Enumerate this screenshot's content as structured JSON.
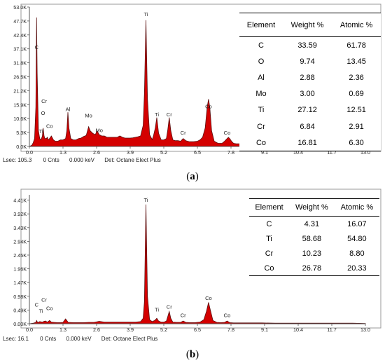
{
  "chart_data": [
    {
      "type": "line",
      "panel": "(a)",
      "x_ticks": [
        "0.0",
        "1.3",
        "2.6",
        "3.9",
        "5.2",
        "6.5",
        "7.8",
        "9.1",
        "10.4",
        "11.7",
        "13.0"
      ],
      "y_ticks": [
        "0.0K",
        "5.3K",
        "10.6K",
        "15.9K",
        "21.2K",
        "26.5K",
        "31.8K",
        "37.1K",
        "42.4K",
        "47.7K",
        "53.0K"
      ],
      "xlim": [
        0,
        13.0
      ],
      "ylim": [
        0,
        53.0
      ],
      "spectrum_kev": [
        0.0,
        0.1,
        0.15,
        0.2,
        0.25,
        0.28,
        0.3,
        0.35,
        0.4,
        0.45,
        0.5,
        0.53,
        0.57,
        0.6,
        0.65,
        0.7,
        0.73,
        0.78,
        0.85,
        0.93,
        1.0,
        1.1,
        1.2,
        1.3,
        1.4,
        1.45,
        1.49,
        1.53,
        1.6,
        1.7,
        1.8,
        1.9,
        2.0,
        2.1,
        2.2,
        2.29,
        2.35,
        2.45,
        2.55,
        2.62,
        2.7,
        2.8,
        2.9,
        3.0,
        3.1,
        3.2,
        3.3,
        3.4,
        3.5,
        3.6,
        3.7,
        3.8,
        3.9,
        4.0,
        4.1,
        4.2,
        4.3,
        4.4,
        4.45,
        4.51,
        4.57,
        4.65,
        4.75,
        4.8,
        4.87,
        4.93,
        5.0,
        5.1,
        5.2,
        5.3,
        5.35,
        5.41,
        5.47,
        5.55,
        5.65,
        5.75,
        5.85,
        5.9,
        5.95,
        6.05,
        6.2,
        6.35,
        6.5,
        6.6,
        6.7,
        6.8,
        6.88,
        6.93,
        6.98,
        7.05,
        7.15,
        7.3,
        7.45,
        7.55,
        7.65,
        7.7,
        7.75,
        7.82,
        7.9,
        8.0,
        8.3,
        8.6,
        9.0,
        9.5,
        10.0,
        10.5,
        11.0,
        11.5,
        12.0,
        12.5,
        13.0
      ],
      "spectrum_counts_k": [
        0,
        0.5,
        1.5,
        3,
        15,
        49,
        28,
        6,
        3,
        2.5,
        4,
        7,
        4,
        3,
        3,
        3.5,
        2.5,
        3,
        4,
        2.5,
        2,
        2,
        2.5,
        2.5,
        3,
        6,
        13,
        7,
        3,
        2.5,
        2.5,
        3,
        3.2,
        3.8,
        4.2,
        7.5,
        6,
        5,
        4.5,
        6,
        4.5,
        4,
        4,
        3.5,
        3.5,
        3.5,
        3.5,
        3.5,
        4,
        3.5,
        3.2,
        3.2,
        3.2,
        3.3,
        3.5,
        3.7,
        4,
        8,
        20,
        48,
        18,
        4.5,
        2.6,
        4,
        7,
        11,
        5,
        2.5,
        2.5,
        3,
        6,
        11,
        6,
        2.5,
        2.2,
        2.2,
        2,
        2.5,
        3,
        2.2,
        1.8,
        1.8,
        2,
        2.5,
        3.5,
        7,
        15,
        18,
        15,
        6,
        2,
        1.2,
        1.2,
        2,
        3,
        3.5,
        3,
        2,
        1.2,
        1,
        1,
        0.9,
        0.8,
        0.7,
        0.6,
        0.5,
        0.4,
        0.35,
        0.3,
        0.25,
        0.2
      ],
      "peak_labels": [
        {
          "label": "C",
          "x": 0.28,
          "y": 37
        },
        {
          "label": "O",
          "x": 0.53,
          "y": 12
        },
        {
          "label": "Ti",
          "x": 0.45,
          "y": 5
        },
        {
          "label": "Cr",
          "x": 0.57,
          "y": 16.5
        },
        {
          "label": "Co",
          "x": 0.78,
          "y": 7
        },
        {
          "label": "Al",
          "x": 1.49,
          "y": 13.5
        },
        {
          "label": "Mo",
          "x": 2.29,
          "y": 11
        },
        {
          "label": "Mo",
          "x": 2.7,
          "y": 5.5
        },
        {
          "label": "Ti",
          "x": 4.51,
          "y": 49.5
        },
        {
          "label": "Ti",
          "x": 4.93,
          "y": 11.5
        },
        {
          "label": "Cr",
          "x": 5.41,
          "y": 11.5
        },
        {
          "label": "Cr",
          "x": 5.95,
          "y": 4.5
        },
        {
          "label": "Co",
          "x": 6.93,
          "y": 14.5
        },
        {
          "label": "Co",
          "x": 7.65,
          "y": 4.5
        }
      ],
      "table": {
        "headers": [
          "Element",
          "Weight %",
          "Atomic %"
        ],
        "rows": [
          [
            "C",
            "33.59",
            "61.78"
          ],
          [
            "O",
            "9.74",
            "13.45"
          ],
          [
            "Al",
            "2.88",
            "2.36"
          ],
          [
            "Mo",
            "3.00",
            "0.69"
          ],
          [
            "Ti",
            "27.12",
            "12.51"
          ],
          [
            "Cr",
            "6.84",
            "2.91"
          ],
          [
            "Co",
            "16.81",
            "6.30"
          ]
        ]
      },
      "status": {
        "lsec": "Lsec: 105.3",
        "cnts": "0 Cnts",
        "kev": "0.000 keV",
        "det": "Det: Octane Elect Plus"
      },
      "caption": {
        "open": "(",
        "letter": "a",
        "close": ")"
      }
    },
    {
      "type": "line",
      "panel": "(b)",
      "x_ticks": [
        "0.0",
        "1.3",
        "2.6",
        "3.9",
        "5.2",
        "6.5",
        "7.8",
        "9.1",
        "10.4",
        "11.7",
        "13.0"
      ],
      "y_ticks": [
        "0.00K",
        "0.49K",
        "0.98K",
        "1.47K",
        "1.96K",
        "2.45K",
        "2.94K",
        "3.43K",
        "3.92K",
        "4.41K"
      ],
      "xlim": [
        0,
        13.0
      ],
      "ylim": [
        0,
        4.7
      ],
      "spectrum_kev": [
        0.0,
        0.15,
        0.25,
        0.28,
        0.32,
        0.4,
        0.45,
        0.5,
        0.57,
        0.62,
        0.7,
        0.78,
        0.85,
        0.95,
        1.1,
        1.2,
        1.3,
        1.4,
        1.5,
        1.7,
        1.9,
        2.1,
        2.3,
        2.5,
        2.7,
        2.9,
        3.1,
        3.3,
        3.5,
        3.7,
        3.9,
        4.1,
        4.3,
        4.4,
        4.45,
        4.51,
        4.57,
        4.65,
        4.75,
        4.85,
        4.93,
        5.0,
        5.1,
        5.2,
        5.3,
        5.35,
        5.41,
        5.47,
        5.55,
        5.7,
        5.85,
        5.95,
        6.05,
        6.2,
        6.4,
        6.6,
        6.75,
        6.85,
        6.93,
        7.0,
        7.1,
        7.25,
        7.4,
        7.55,
        7.65,
        7.75,
        7.9,
        8.1,
        8.5,
        9.0,
        9.5,
        10.0,
        10.5,
        11.0,
        11.5,
        12.0,
        12.5,
        13.0
      ],
      "spectrum_counts_k": [
        0,
        0.02,
        0.05,
        0.12,
        0.04,
        0.08,
        0.07,
        0.06,
        0.09,
        0.1,
        0.06,
        0.12,
        0.06,
        0.05,
        0.04,
        0.04,
        0.05,
        0.18,
        0.05,
        0.04,
        0.04,
        0.04,
        0.05,
        0.05,
        0.09,
        0.06,
        0.06,
        0.06,
        0.06,
        0.06,
        0.06,
        0.06,
        0.08,
        0.2,
        0.8,
        4.35,
        1.0,
        0.15,
        0.08,
        0.12,
        0.2,
        0.1,
        0.06,
        0.06,
        0.1,
        0.25,
        0.45,
        0.2,
        0.06,
        0.05,
        0.05,
        0.1,
        0.05,
        0.04,
        0.04,
        0.06,
        0.15,
        0.45,
        0.78,
        0.5,
        0.12,
        0.05,
        0.04,
        0.05,
        0.1,
        0.04,
        0.03,
        0.03,
        0.03,
        0.03,
        0.02,
        0.02,
        0.02,
        0.02,
        0.02,
        0.02,
        0.02,
        0.01
      ],
      "peak_labels": [
        {
          "label": "C",
          "x": 0.28,
          "y": 0.62
        },
        {
          "label": "Ti",
          "x": 0.45,
          "y": 0.4
        },
        {
          "label": "Cr",
          "x": 0.57,
          "y": 0.8
        },
        {
          "label": "Co",
          "x": 0.78,
          "y": 0.5
        },
        {
          "label": "Ti",
          "x": 4.51,
          "y": 4.45
        },
        {
          "label": "Ti",
          "x": 4.93,
          "y": 0.45
        },
        {
          "label": "Cr",
          "x": 5.41,
          "y": 0.55
        },
        {
          "label": "Cr",
          "x": 5.95,
          "y": 0.24
        },
        {
          "label": "Co",
          "x": 6.93,
          "y": 0.87
        },
        {
          "label": "Co",
          "x": 7.65,
          "y": 0.24
        }
      ],
      "table": {
        "headers": [
          "Element",
          "Weight %",
          "Atomic %"
        ],
        "rows": [
          [
            "C",
            "4.31",
            "16.07"
          ],
          [
            "Ti",
            "58.68",
            "54.80"
          ],
          [
            "Cr",
            "10.23",
            "8.80"
          ],
          [
            "Co",
            "26.78",
            "20.33"
          ]
        ]
      },
      "status": {
        "lsec": "Lsec: 16.1",
        "cnts": "0 Cnts",
        "kev": "0.000 keV",
        "det": "Det: Octane Elect Plus"
      },
      "caption": {
        "open": "(",
        "letter": "b",
        "close": ")"
      }
    }
  ],
  "colors": {
    "fill": "#d40000",
    "fill_dark": "#5a1010",
    "axis": "#555555",
    "frame": "#9a9a9a",
    "label": "#222222",
    "grid_bg": "#ffffff"
  }
}
